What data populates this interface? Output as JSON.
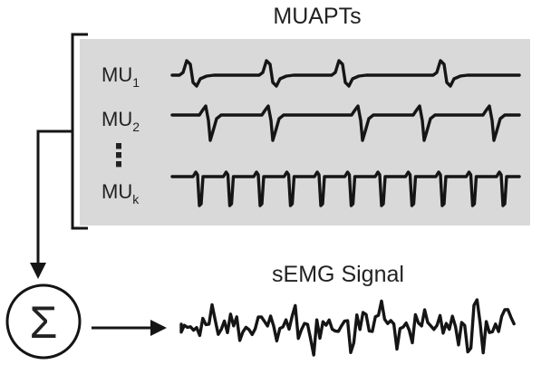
{
  "title": "MUAPTs",
  "motor_units": [
    {
      "base": "MU",
      "sub": "1"
    },
    {
      "base": "MU",
      "sub": "2"
    },
    {
      "base": "MU",
      "sub": "k"
    }
  ],
  "ellipsis": "⋮",
  "sum_symbol": "Σ",
  "output_label": "sEMG Signal",
  "colors": {
    "panel": "#d9d9d9",
    "ink": "#151515",
    "text": "#222222"
  }
}
